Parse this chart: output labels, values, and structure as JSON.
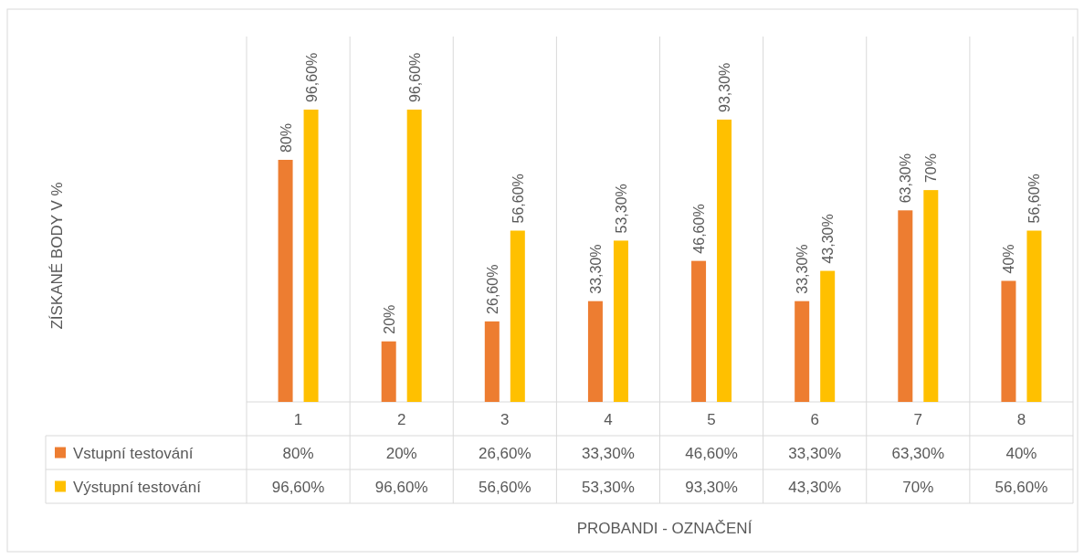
{
  "chart_data": {
    "type": "bar",
    "annotations": [
      "ZÍSKANÉ BODY V %",
      "PROBANDI - OZNAČENÍ"
    ],
    "categories": [
      "1",
      "2",
      "3",
      "4",
      "5",
      "6",
      "7",
      "8"
    ],
    "legend": "bottom",
    "series": [
      {
        "name": "Vstupní testování",
        "color": "#ed7d31",
        "values": [
          80,
          20,
          26.6,
          33.3,
          46.6,
          33.3,
          63.3,
          40
        ],
        "value_labels": [
          "80%",
          "20%",
          "26,60%",
          "33,30%",
          "46,60%",
          "33,30%",
          "63,30%",
          "40%"
        ]
      },
      {
        "name": "Výstupní testování",
        "color": "#ffc000",
        "values": [
          96.6,
          96.6,
          56.6,
          53.3,
          93.3,
          43.3,
          70,
          56.6
        ],
        "value_labels": [
          "96,60%",
          "96,60%",
          "56,60%",
          "53,30%",
          "93,30%",
          "43,30%",
          "70%",
          "56,60%"
        ]
      }
    ]
  }
}
